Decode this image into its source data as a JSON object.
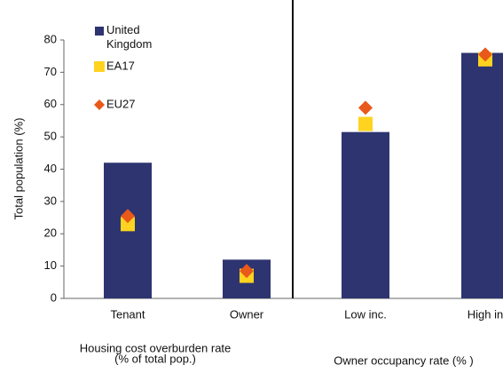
{
  "chart_data": {
    "type": "bar",
    "y_label": "Total population (%)",
    "categories": [
      "Tenant",
      "Owner",
      "Low inc.",
      "High in"
    ],
    "group_labels": [
      [
        "Housing cost overburden rate",
        "(% of total pop.)"
      ],
      [
        "Owner occupancy rate (% )"
      ]
    ],
    "series": [
      {
        "name": "United Kingdom",
        "color": "#2e3470",
        "marker": "bar",
        "values": [
          42,
          12,
          51.5,
          76
        ]
      },
      {
        "name": "EA17",
        "color": "#ffd320",
        "marker": "square",
        "values": [
          23,
          7,
          54,
          74
        ]
      },
      {
        "name": "EU27",
        "color": "#e8591a",
        "marker": "diamond",
        "values": [
          25.5,
          8.5,
          59,
          75.5
        ]
      }
    ],
    "ylim": [
      0,
      80
    ],
    "yticks": [
      0,
      10,
      20,
      30,
      40,
      50,
      60,
      70,
      80
    ],
    "grid": false
  }
}
